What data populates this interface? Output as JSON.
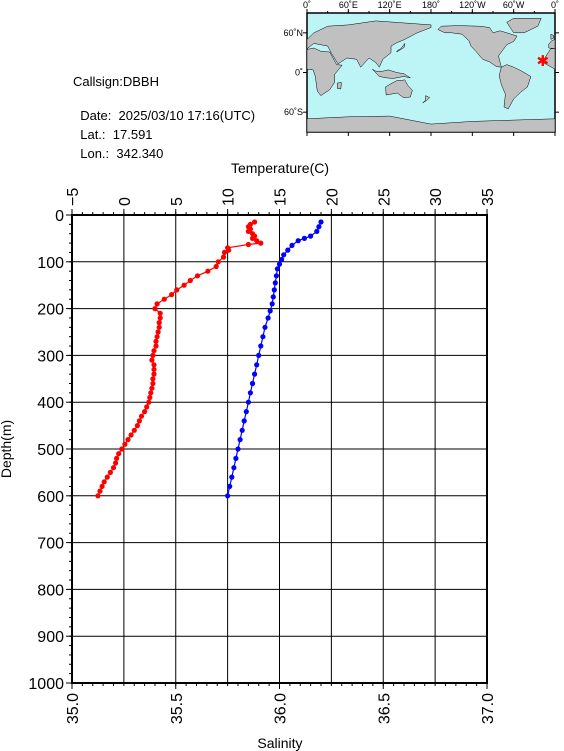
{
  "info": {
    "callsign": "Callsign:DBBH",
    "date_label": "Date:",
    "date_value": "2025/03/10 17:16(UTC)",
    "lat_label": "Lat.:",
    "lat_value": "17.591",
    "lon_label": "Lon.:",
    "lon_value": "342.340"
  },
  "map": {
    "lon_ticks": [
      "0˚",
      "60˚E",
      "120˚E",
      "180˚",
      "120˚W",
      "60˚W",
      "0˚"
    ],
    "lat_ticks": [
      "60˚N",
      "0˚",
      "60˚S"
    ],
    "station_lon": 342.34,
    "station_lat": 17.591,
    "marker_symbol": "✱",
    "ocean_color": "#bdf5f7",
    "land_color": "#c0c0c0"
  },
  "chart_data": {
    "type": "scatter",
    "y_axis": {
      "label": "Depth(m)",
      "ylim": [
        0,
        1000
      ],
      "inverted": true,
      "ticks": [
        "0",
        "100",
        "200",
        "300",
        "400",
        "500",
        "600",
        "700",
        "800",
        "900",
        "1000"
      ]
    },
    "x_top": {
      "label": "Temperature(C)",
      "xlim": [
        -5,
        35
      ],
      "ticks": [
        "−5",
        "0",
        "5",
        "10",
        "15",
        "20",
        "25",
        "30",
        "35"
      ]
    },
    "x_bottom": {
      "label": "Salinity",
      "xlim": [
        35.0,
        37.0
      ],
      "ticks": [
        "35.0",
        "35.5",
        "36.0",
        "36.5",
        "37.0"
      ]
    },
    "grid": true,
    "series": [
      {
        "quantity": "temperature",
        "axis": "top",
        "color": "#ff0000",
        "points": [
          [
            12.6,
            15
          ],
          [
            12.2,
            20
          ],
          [
            12.0,
            25
          ],
          [
            12.2,
            30
          ],
          [
            12.0,
            35
          ],
          [
            12.4,
            40
          ],
          [
            12.6,
            45
          ],
          [
            12.4,
            50
          ],
          [
            12.8,
            55
          ],
          [
            13.2,
            60
          ],
          [
            12.0,
            63
          ],
          [
            10.0,
            70
          ],
          [
            10.1,
            75
          ],
          [
            9.7,
            80
          ],
          [
            9.6,
            90
          ],
          [
            9.1,
            100
          ],
          [
            8.9,
            110
          ],
          [
            8.1,
            120
          ],
          [
            7.1,
            130
          ],
          [
            6.4,
            140
          ],
          [
            5.8,
            150
          ],
          [
            5.1,
            160
          ],
          [
            4.6,
            170
          ],
          [
            3.9,
            180
          ],
          [
            3.2,
            190
          ],
          [
            3.0,
            200
          ],
          [
            3.5,
            210
          ],
          [
            3.5,
            220
          ],
          [
            3.4,
            230
          ],
          [
            3.4,
            240
          ],
          [
            3.3,
            250
          ],
          [
            3.2,
            260
          ],
          [
            3.1,
            270
          ],
          [
            3.1,
            280
          ],
          [
            2.9,
            290
          ],
          [
            2.8,
            300
          ],
          [
            2.7,
            310
          ],
          [
            2.9,
            320
          ],
          [
            2.9,
            330
          ],
          [
            2.9,
            340
          ],
          [
            2.8,
            350
          ],
          [
            2.8,
            360
          ],
          [
            2.7,
            370
          ],
          [
            2.6,
            380
          ],
          [
            2.5,
            390
          ],
          [
            2.4,
            400
          ],
          [
            2.2,
            410
          ],
          [
            2.0,
            420
          ],
          [
            1.7,
            430
          ],
          [
            1.5,
            440
          ],
          [
            1.3,
            450
          ],
          [
            1.0,
            460
          ],
          [
            0.7,
            470
          ],
          [
            0.4,
            480
          ],
          [
            0.1,
            490
          ],
          [
            -0.2,
            500
          ],
          [
            -0.5,
            510
          ],
          [
            -0.7,
            520
          ],
          [
            -0.8,
            530
          ],
          [
            -1.0,
            540
          ],
          [
            -1.3,
            550
          ],
          [
            -1.6,
            560
          ],
          [
            -1.9,
            570
          ],
          [
            -2.1,
            580
          ],
          [
            -2.3,
            590
          ],
          [
            -2.5,
            600
          ]
        ]
      },
      {
        "quantity": "salinity",
        "axis": "bottom",
        "color": "#0000ff",
        "points": [
          [
            36.2,
            15
          ],
          [
            36.19,
            25
          ],
          [
            36.18,
            35
          ],
          [
            36.15,
            45
          ],
          [
            36.12,
            50
          ],
          [
            36.09,
            55
          ],
          [
            36.06,
            65
          ],
          [
            36.04,
            75
          ],
          [
            36.02,
            85
          ],
          [
            36.01,
            95
          ],
          [
            36.0,
            105
          ],
          [
            35.99,
            115
          ],
          [
            35.985,
            130
          ],
          [
            35.98,
            145
          ],
          [
            35.975,
            160
          ],
          [
            35.97,
            175
          ],
          [
            35.965,
            190
          ],
          [
            35.955,
            205
          ],
          [
            35.945,
            220
          ],
          [
            35.93,
            240
          ],
          [
            35.92,
            260
          ],
          [
            35.91,
            280
          ],
          [
            35.9,
            300
          ],
          [
            35.89,
            320
          ],
          [
            35.88,
            340
          ],
          [
            35.87,
            360
          ],
          [
            35.86,
            380
          ],
          [
            35.85,
            400
          ],
          [
            35.84,
            420
          ],
          [
            35.83,
            440
          ],
          [
            35.82,
            460
          ],
          [
            35.81,
            480
          ],
          [
            35.8,
            500
          ],
          [
            35.79,
            520
          ],
          [
            35.78,
            540
          ],
          [
            35.77,
            560
          ],
          [
            35.76,
            580
          ],
          [
            35.75,
            600
          ]
        ]
      }
    ]
  }
}
